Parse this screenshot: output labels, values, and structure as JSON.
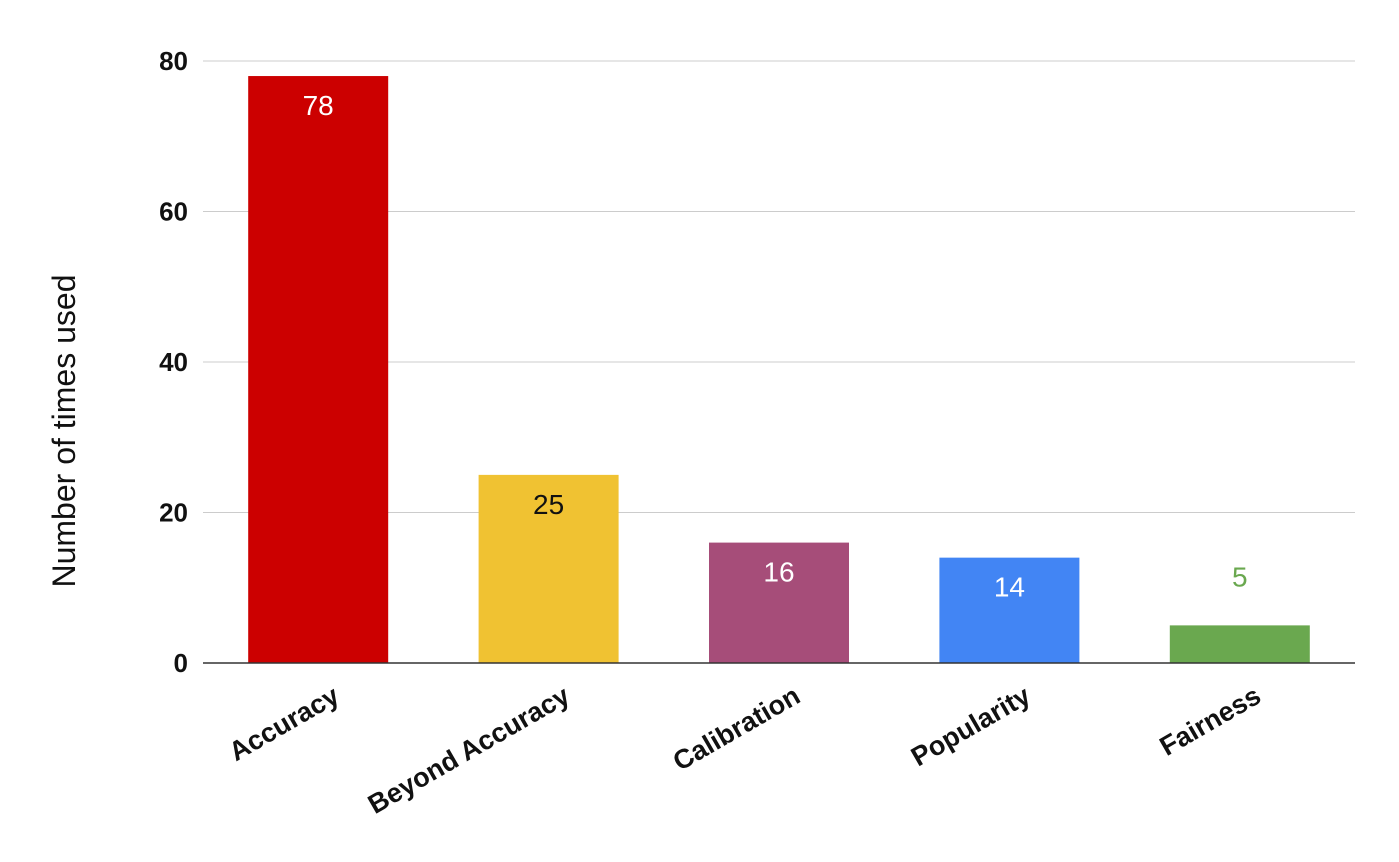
{
  "chart_data": {
    "type": "bar",
    "title": "",
    "xlabel": "",
    "ylabel": "Number of times used",
    "categories": [
      "Accuracy",
      "Beyond Accuracy",
      "Calibration",
      "Popularity",
      "Fairness"
    ],
    "values": [
      78,
      25,
      16,
      14,
      5
    ],
    "value_labels": [
      "78",
      "25",
      "16",
      "14",
      "5"
    ],
    "bar_colors": [
      "#cc0000",
      "#f0c232",
      "#a64d79",
      "#4285f4",
      "#6aa84f"
    ],
    "value_label_colors": [
      "#ffffff",
      "#111111",
      "#ffffff",
      "#ffffff",
      "#6aa84f"
    ],
    "value_label_position": [
      "inside",
      "inside",
      "inside",
      "inside",
      "outside"
    ],
    "yticks": [
      0,
      20,
      40,
      60,
      80
    ],
    "ytick_labels": [
      "0",
      "20",
      "40",
      "60",
      "80"
    ],
    "ylim": [
      0,
      80
    ],
    "grid": true,
    "legend": "none",
    "category_label_rotation_deg": -30
  }
}
